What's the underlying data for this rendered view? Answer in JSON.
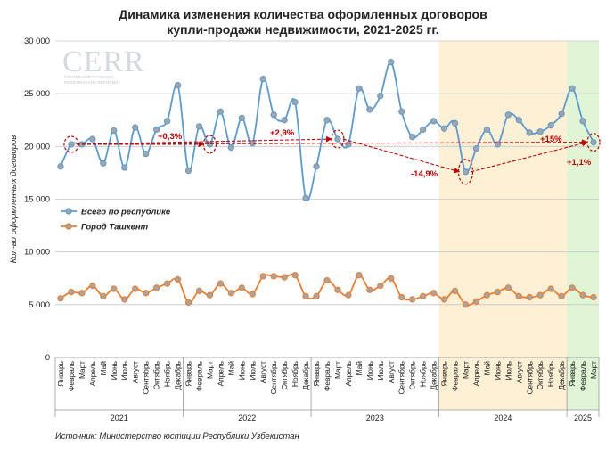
{
  "chart_data": {
    "type": "line",
    "title_line1": "Динамика изменения количества оформленных договоров",
    "title_line2": "купли-продажи недвижимости, 2021-2025 гг.",
    "ylabel": "Кол-во оформленных договоров",
    "ylim": [
      0,
      30000
    ],
    "yticks": [
      0,
      5000,
      10000,
      15000,
      20000,
      25000,
      30000
    ],
    "ytick_labels": [
      "0",
      "5 000",
      "10 000",
      "15 000",
      "20 000",
      "25 000",
      "30 000"
    ],
    "grid": "horizontal",
    "legend_position": "middle-left",
    "categories": [
      "Январь",
      "Февраль",
      "Март",
      "Апрель",
      "Май",
      "Июнь",
      "Июль",
      "Август",
      "Сентябрь",
      "Октябрь",
      "Ноябрь",
      "Декабрь",
      "Январь",
      "Февраль",
      "Март",
      "Апрель",
      "Май",
      "Июнь",
      "Июль",
      "Август",
      "Сентябрь",
      "Октябрь",
      "Ноябрь",
      "Декабрь",
      "Январь",
      "Февраль",
      "Март",
      "Апрель",
      "Май",
      "Июнь",
      "Июль",
      "Август",
      "Сентябрь",
      "Октябрь",
      "Ноябрь",
      "Декабрь",
      "Январь",
      "Февраль",
      "Март",
      "Апрель",
      "Май",
      "Июнь",
      "Июль",
      "Август",
      "Сентябрь",
      "Октябрь",
      "Ноябрь",
      "Декабрь",
      "Январь",
      "Февраль",
      "Март"
    ],
    "years": [
      {
        "label": "2021",
        "start": 0,
        "end": 11
      },
      {
        "label": "2022",
        "start": 12,
        "end": 23
      },
      {
        "label": "2023",
        "start": 24,
        "end": 35
      },
      {
        "label": "2024",
        "start": 36,
        "end": 47
      },
      {
        "label": "2025",
        "start": 48,
        "end": 50
      }
    ],
    "series": [
      {
        "name": "Всего по республике",
        "color": "#5b9bd5",
        "marker_color": "#a5a5a5",
        "values": [
          18100,
          20200,
          20200,
          20700,
          18400,
          21500,
          18000,
          21800,
          19300,
          21600,
          22400,
          25800,
          17700,
          21900,
          20200,
          23300,
          19900,
          22700,
          20300,
          26400,
          23000,
          22500,
          24200,
          15100,
          18100,
          22500,
          20700,
          20200,
          25500,
          23500,
          24800,
          28000,
          23300,
          20900,
          21600,
          22400,
          21700,
          22200,
          17600,
          19800,
          21600,
          20200,
          23000,
          22500,
          21300,
          21400,
          22000,
          23100,
          25500,
          22400,
          20400
        ]
      },
      {
        "name": "Город Ташкент",
        "color": "#ed7d31",
        "marker_color": "#a5a5a5",
        "values": [
          5600,
          6200,
          6100,
          6800,
          5800,
          6500,
          5500,
          6500,
          6100,
          6600,
          7000,
          7400,
          5200,
          6300,
          5900,
          7000,
          6100,
          6600,
          6000,
          7700,
          7700,
          7600,
          7800,
          5800,
          5800,
          7300,
          6400,
          5900,
          7800,
          6400,
          6800,
          7500,
          5700,
          5500,
          5800,
          6100,
          5500,
          6300,
          5000,
          5300,
          5900,
          6200,
          6600,
          5800,
          5700,
          5900,
          6500,
          5800,
          6600,
          5900,
          5700
        ]
      }
    ],
    "annotations": [
      "+0,3%",
      "+2,9%",
      "-14,9%",
      "+15%",
      "+1,1%"
    ],
    "highlights": [
      {
        "from": 36,
        "to": 47,
        "color": "#fdf0d5"
      },
      {
        "from": 48,
        "to": 50,
        "color": "#dff5d6"
      }
    ],
    "source": "Источник: Министерство юстиции Республики Узбекистан",
    "logo_text": "CERR",
    "logo_subtitle": "CENTER FOR ECONOMIC RESEARCH AND REFORMS"
  }
}
